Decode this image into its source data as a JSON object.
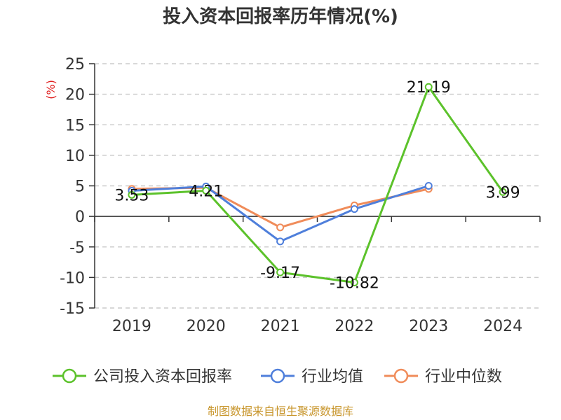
{
  "chart_data": {
    "type": "line",
    "title": "投入资本回报率历年情况(%)",
    "ylabel": "(%)",
    "xlabel": "",
    "categories": [
      "2019",
      "2020",
      "2021",
      "2022",
      "2023",
      "2024"
    ],
    "ylim": [
      -15,
      25
    ],
    "yticks": [
      25,
      20,
      15,
      10,
      5,
      0,
      -5,
      -10,
      -15
    ],
    "grid": true,
    "legend_position": "bottom",
    "series": [
      {
        "name": "公司投入资本回报率",
        "color": "#5cc22b",
        "values": [
          3.53,
          4.21,
          -9.17,
          -10.82,
          21.19,
          3.99
        ],
        "labels": [
          "3.53",
          "4.21",
          "-9.17",
          "-10.82",
          "21.19",
          "3.99"
        ]
      },
      {
        "name": "行业均值",
        "color": "#4f7fdb",
        "values": [
          4.2,
          4.9,
          -4.1,
          1.2,
          5.0,
          null
        ]
      },
      {
        "name": "行业中位数",
        "color": "#f08c5a",
        "values": [
          4.5,
          4.7,
          -1.8,
          1.8,
          4.5,
          null
        ]
      }
    ]
  },
  "source_text": "制图数据来自恒生聚源数据库"
}
